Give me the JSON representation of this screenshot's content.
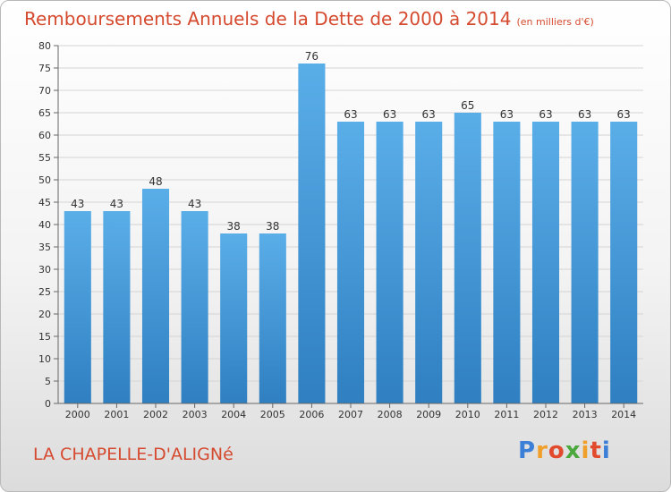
{
  "title": "Remboursements Annuels de la Dette de 2000 à 2014",
  "unit_note": "(en milliers d'€)",
  "city": "LA CHAPELLE-D'ALIGNé",
  "logo_text": "Proxiti",
  "colors": {
    "bar_top": "#5aaee8",
    "bar_bottom": "#2f7fc1",
    "title": "#d54a2f"
  },
  "chart_data": {
    "type": "bar",
    "title": "Remboursements Annuels de la Dette de 2000 à 2014",
    "xlabel": "",
    "ylabel": "",
    "ylim": [
      0,
      80
    ],
    "yticks": [
      0,
      5,
      10,
      15,
      20,
      25,
      30,
      35,
      40,
      45,
      50,
      55,
      60,
      65,
      70,
      75,
      80
    ],
    "categories": [
      "2000",
      "2001",
      "2002",
      "2003",
      "2004",
      "2005",
      "2006",
      "2007",
      "2008",
      "2009",
      "2010",
      "2011",
      "2012",
      "2013",
      "2014"
    ],
    "values": [
      43,
      43,
      48,
      43,
      38,
      38,
      76,
      63,
      63,
      63,
      65,
      63,
      63,
      63,
      63
    ],
    "grid": true
  }
}
